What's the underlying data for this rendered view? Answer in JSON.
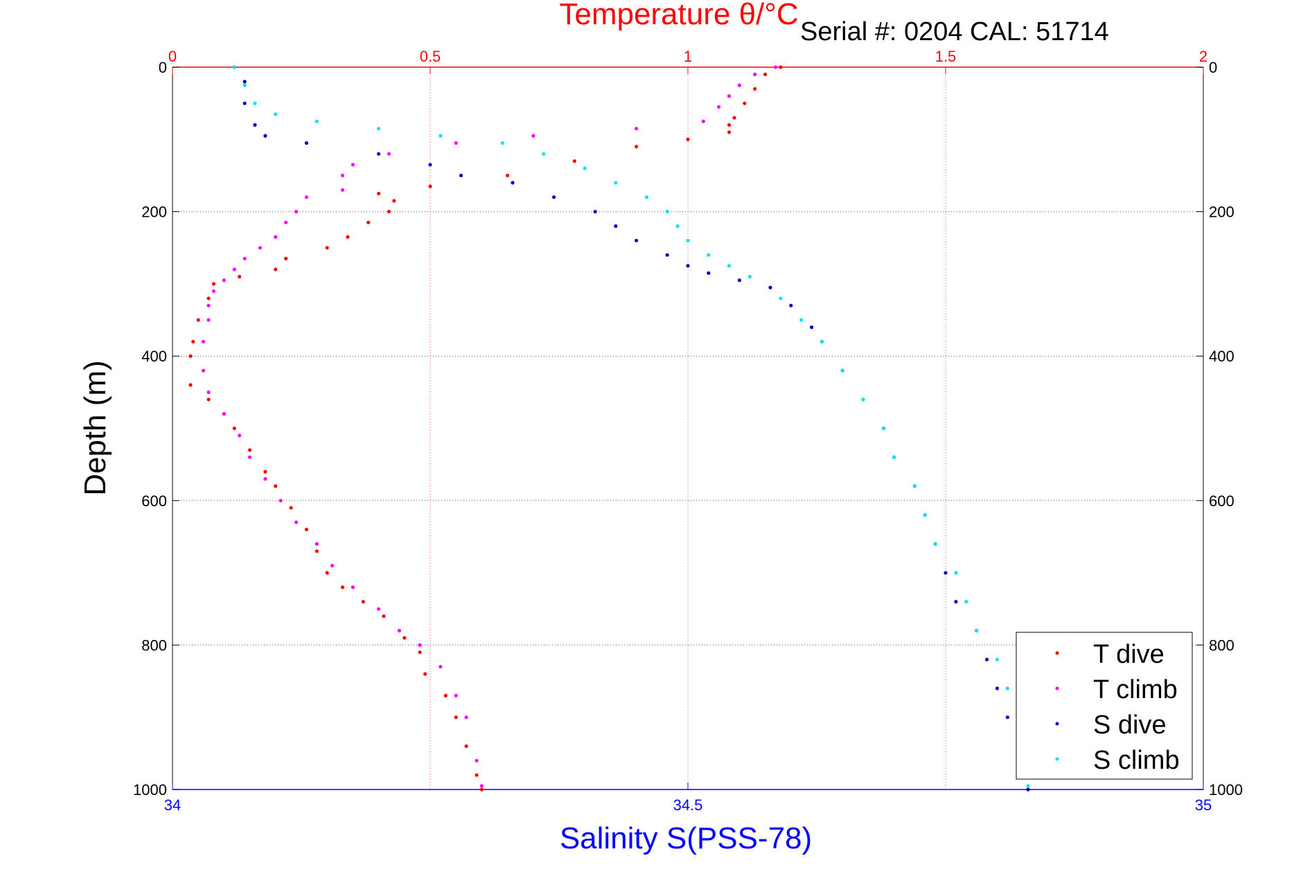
{
  "header": {
    "serial_text": "Serial #: 0204   CAL: 51714"
  },
  "chart_data": {
    "type": "scatter",
    "title": "Temperature θ/°C",
    "top_axis_label": "Temperature θ/°C",
    "xlabel": "Salinity S(PSS-78)",
    "ylabel": "Depth (m)",
    "salinity_axis": {
      "range": [
        34,
        35
      ],
      "ticks": [
        34,
        34.5,
        35
      ],
      "tick_labels": [
        "34",
        "34.5",
        "35"
      ]
    },
    "temperature_axis": {
      "range": [
        0,
        2
      ],
      "ticks": [
        0,
        0.5,
        1,
        1.5,
        2
      ],
      "tick_labels": [
        "0",
        "0.5",
        "1",
        "1.5",
        "2"
      ]
    },
    "depth_axis": {
      "range": [
        0,
        1000
      ],
      "reversed": true,
      "ticks": [
        0,
        200,
        400,
        600,
        800,
        1000
      ],
      "tick_labels": [
        "0",
        "200",
        "400",
        "600",
        "800",
        "1000"
      ]
    },
    "grid": true,
    "legend_position": "bottom-right",
    "colors": {
      "t_dive": "#ff0000",
      "t_climb": "#ff00ff",
      "s_dive": "#0000cc",
      "s_climb": "#00e5ee",
      "temp_axis": "#ff0000",
      "sal_axis": "#0000ff"
    },
    "series": [
      {
        "name": "T dive",
        "key": "t_dive",
        "axis": "temperature",
        "points": [
          [
            1.18,
            0
          ],
          [
            1.15,
            10
          ],
          [
            1.13,
            30
          ],
          [
            1.11,
            50
          ],
          [
            1.09,
            70
          ],
          [
            1.08,
            80
          ],
          [
            1.08,
            90
          ],
          [
            1.0,
            100
          ],
          [
            0.9,
            110
          ],
          [
            0.78,
            130
          ],
          [
            0.65,
            150
          ],
          [
            0.5,
            165
          ],
          [
            0.4,
            175
          ],
          [
            0.43,
            185
          ],
          [
            0.42,
            200
          ],
          [
            0.38,
            215
          ],
          [
            0.34,
            235
          ],
          [
            0.3,
            250
          ],
          [
            0.22,
            265
          ],
          [
            0.2,
            280
          ],
          [
            0.13,
            290
          ],
          [
            0.08,
            300
          ],
          [
            0.07,
            320
          ],
          [
            0.05,
            350
          ],
          [
            0.04,
            380
          ],
          [
            0.035,
            400
          ],
          [
            0.035,
            440
          ],
          [
            0.07,
            460
          ],
          [
            0.1,
            480
          ],
          [
            0.12,
            500
          ],
          [
            0.15,
            530
          ],
          [
            0.18,
            560
          ],
          [
            0.2,
            580
          ],
          [
            0.23,
            610
          ],
          [
            0.26,
            640
          ],
          [
            0.28,
            670
          ],
          [
            0.3,
            700
          ],
          [
            0.33,
            720
          ],
          [
            0.37,
            740
          ],
          [
            0.41,
            760
          ],
          [
            0.45,
            790
          ],
          [
            0.48,
            810
          ],
          [
            0.49,
            840
          ],
          [
            0.53,
            870
          ],
          [
            0.55,
            900
          ],
          [
            0.57,
            940
          ],
          [
            0.59,
            980
          ],
          [
            0.6,
            1000
          ]
        ]
      },
      {
        "name": "T climb",
        "key": "t_climb",
        "axis": "temperature",
        "points": [
          [
            1.17,
            0
          ],
          [
            1.13,
            10
          ],
          [
            1.1,
            25
          ],
          [
            1.08,
            40
          ],
          [
            1.06,
            55
          ],
          [
            1.03,
            75
          ],
          [
            0.9,
            85
          ],
          [
            0.7,
            95
          ],
          [
            0.55,
            105
          ],
          [
            0.42,
            120
          ],
          [
            0.35,
            135
          ],
          [
            0.33,
            150
          ],
          [
            0.33,
            170
          ],
          [
            0.26,
            180
          ],
          [
            0.24,
            200
          ],
          [
            0.22,
            215
          ],
          [
            0.2,
            235
          ],
          [
            0.17,
            250
          ],
          [
            0.14,
            265
          ],
          [
            0.12,
            280
          ],
          [
            0.1,
            295
          ],
          [
            0.08,
            310
          ],
          [
            0.07,
            330
          ],
          [
            0.07,
            350
          ],
          [
            0.06,
            380
          ],
          [
            0.06,
            420
          ],
          [
            0.07,
            450
          ],
          [
            0.1,
            480
          ],
          [
            0.13,
            510
          ],
          [
            0.15,
            540
          ],
          [
            0.18,
            570
          ],
          [
            0.21,
            600
          ],
          [
            0.24,
            630
          ],
          [
            0.28,
            660
          ],
          [
            0.31,
            690
          ],
          [
            0.35,
            720
          ],
          [
            0.4,
            750
          ],
          [
            0.44,
            780
          ],
          [
            0.48,
            800
          ],
          [
            0.52,
            830
          ],
          [
            0.55,
            870
          ],
          [
            0.57,
            900
          ],
          [
            0.59,
            960
          ],
          [
            0.6,
            995
          ]
        ]
      },
      {
        "name": "S dive",
        "key": "s_dive",
        "axis": "salinity",
        "points": [
          [
            34.06,
            0
          ],
          [
            34.07,
            20
          ],
          [
            34.07,
            50
          ],
          [
            34.08,
            80
          ],
          [
            34.09,
            95
          ],
          [
            34.13,
            105
          ],
          [
            34.2,
            120
          ],
          [
            34.25,
            135
          ],
          [
            34.28,
            150
          ],
          [
            34.33,
            160
          ],
          [
            34.37,
            180
          ],
          [
            34.41,
            200
          ],
          [
            34.43,
            220
          ],
          [
            34.45,
            240
          ],
          [
            34.48,
            260
          ],
          [
            34.5,
            275
          ],
          [
            34.52,
            285
          ],
          [
            34.55,
            295
          ],
          [
            34.58,
            305
          ],
          [
            34.6,
            330
          ],
          [
            34.62,
            360
          ],
          [
            34.63,
            380
          ],
          [
            34.65,
            420
          ],
          [
            34.67,
            460
          ],
          [
            34.69,
            500
          ],
          [
            34.7,
            540
          ],
          [
            34.72,
            580
          ],
          [
            34.73,
            620
          ],
          [
            34.74,
            660
          ],
          [
            34.75,
            700
          ],
          [
            34.76,
            740
          ],
          [
            34.78,
            780
          ],
          [
            34.79,
            820
          ],
          [
            34.8,
            860
          ],
          [
            34.81,
            900
          ],
          [
            34.82,
            940
          ],
          [
            34.82,
            980
          ],
          [
            34.83,
            1000
          ]
        ]
      },
      {
        "name": "S climb",
        "key": "s_climb",
        "axis": "salinity",
        "points": [
          [
            34.06,
            0
          ],
          [
            34.07,
            25
          ],
          [
            34.08,
            50
          ],
          [
            34.1,
            65
          ],
          [
            34.14,
            75
          ],
          [
            34.2,
            85
          ],
          [
            34.26,
            95
          ],
          [
            34.32,
            105
          ],
          [
            34.36,
            120
          ],
          [
            34.4,
            140
          ],
          [
            34.43,
            160
          ],
          [
            34.46,
            180
          ],
          [
            34.48,
            200
          ],
          [
            34.49,
            220
          ],
          [
            34.5,
            240
          ],
          [
            34.52,
            260
          ],
          [
            34.54,
            275
          ],
          [
            34.56,
            290
          ],
          [
            34.59,
            320
          ],
          [
            34.61,
            350
          ],
          [
            34.63,
            380
          ],
          [
            34.65,
            420
          ],
          [
            34.67,
            460
          ],
          [
            34.69,
            500
          ],
          [
            34.7,
            540
          ],
          [
            34.72,
            580
          ],
          [
            34.73,
            620
          ],
          [
            34.74,
            660
          ],
          [
            34.76,
            700
          ],
          [
            34.77,
            740
          ],
          [
            34.78,
            780
          ],
          [
            34.8,
            820
          ],
          [
            34.81,
            860
          ],
          [
            34.82,
            900
          ],
          [
            34.82,
            940
          ],
          [
            34.83,
            980
          ],
          [
            34.83,
            995
          ]
        ]
      }
    ]
  }
}
